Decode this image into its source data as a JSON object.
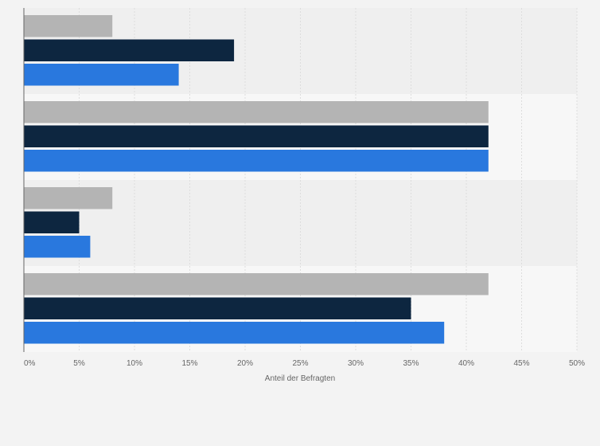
{
  "chart_data": {
    "type": "bar",
    "orientation": "horizontal",
    "title": "",
    "xlabel": "Anteil der Befragten",
    "ylabel": "",
    "xlim": [
      0,
      50
    ],
    "xticks": [
      0,
      5,
      10,
      15,
      20,
      25,
      30,
      35,
      40,
      45,
      50
    ],
    "xtick_labels": [
      "0%",
      "5%",
      "10%",
      "15%",
      "20%",
      "25%",
      "30%",
      "35%",
      "40%",
      "45%",
      "50%"
    ],
    "categories": [
      "",
      "",
      "",
      ""
    ],
    "series": [
      {
        "name": "",
        "color": "#b4b4b4",
        "values": [
          8,
          42,
          8,
          42
        ]
      },
      {
        "name": "",
        "color": "#0d2640",
        "values": [
          19,
          42,
          5,
          35
        ]
      },
      {
        "name": "",
        "color": "#2978de",
        "values": [
          14,
          42,
          6,
          38
        ]
      }
    ],
    "grid": true,
    "legend": "none"
  },
  "colors": {
    "background": "#f3f3f3",
    "band_light": "#f7f7f7",
    "band_dark": "#efefef",
    "grid": "#dddddd",
    "axis": "#666666"
  }
}
